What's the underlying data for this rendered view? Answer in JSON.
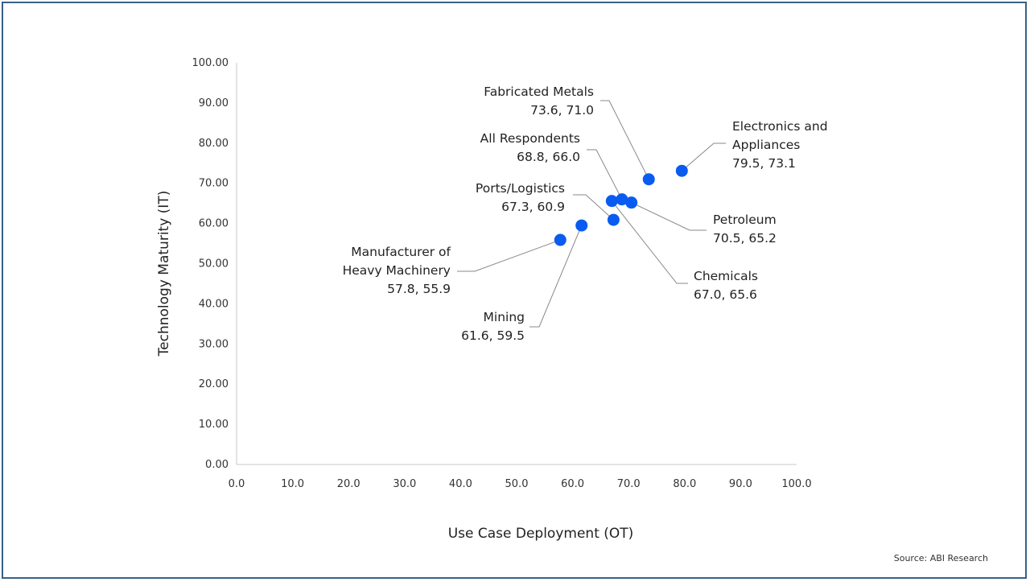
{
  "source": "Source: ABI Research",
  "colors": {
    "marker": "#0a5cf0",
    "axis": "#c8c8c8",
    "leader": "#888888"
  },
  "chart_data": {
    "type": "scatter",
    "xlabel": "Use Case Deployment (OT)",
    "ylabel": "Technology Maturity (IT)",
    "xlim": [
      0,
      100
    ],
    "ylim": [
      0,
      100
    ],
    "x_ticks": [
      "0.0",
      "10.0",
      "20.0",
      "30.0",
      "40.0",
      "50.0",
      "60.0",
      "70.0",
      "80.0",
      "90.0",
      "100.0"
    ],
    "y_ticks": [
      "0.00",
      "10.00",
      "20.00",
      "30.00",
      "40.00",
      "50.00",
      "60.00",
      "70.00",
      "80.00",
      "90.00",
      "100.00"
    ],
    "grid": false,
    "points": [
      {
        "lines": [
          "Fabricated Metals",
          "73.6, 71.0"
        ],
        "x": 73.6,
        "y": 71.0
      },
      {
        "lines": [
          "Electronics and",
          "Appliances",
          "79.5, 73.1"
        ],
        "x": 79.5,
        "y": 73.1
      },
      {
        "lines": [
          "All Respondents",
          "68.8, 66.0"
        ],
        "x": 68.8,
        "y": 66.0
      },
      {
        "lines": [
          "Ports/Logistics",
          "67.3, 60.9"
        ],
        "x": 67.3,
        "y": 60.9
      },
      {
        "lines": [
          "Petroleum",
          "70.5, 65.2"
        ],
        "x": 70.5,
        "y": 65.2
      },
      {
        "lines": [
          "Chemicals",
          "67.0, 65.6"
        ],
        "x": 67.0,
        "y": 65.6
      },
      {
        "lines": [
          "Manufacturer of",
          "Heavy Machinery",
          "57.8, 55.9"
        ],
        "x": 57.8,
        "y": 55.9
      },
      {
        "lines": [
          "Mining",
          "61.6, 59.5"
        ],
        "x": 61.6,
        "y": 59.5
      }
    ]
  }
}
